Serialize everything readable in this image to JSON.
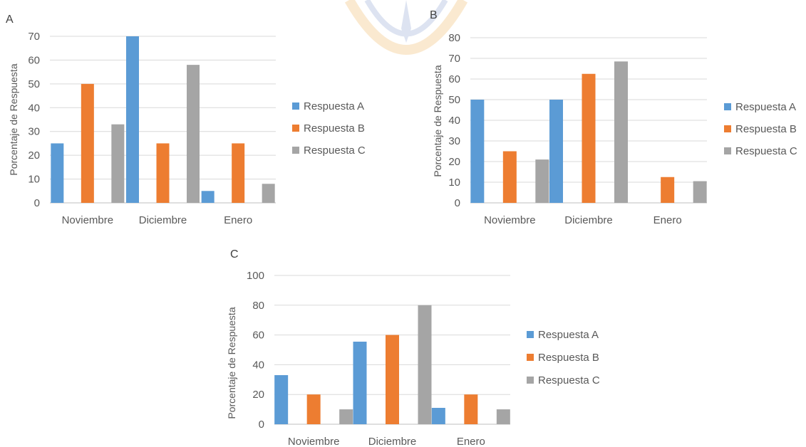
{
  "chart_data": [
    {
      "type": "bar",
      "title": "A",
      "ylabel": "Porcentaje de Respuesta",
      "xlabel": "",
      "ylim": [
        0,
        70
      ],
      "yticks": [
        0,
        10,
        20,
        30,
        40,
        50,
        60,
        70
      ],
      "categories": [
        "Noviembre",
        "Diciembre",
        "Enero"
      ],
      "series": [
        {
          "name": "Respuesta A",
          "color": "#5b9bd5",
          "values": [
            25,
            70,
            5
          ]
        },
        {
          "name": "Respuesta B",
          "color": "#ed7d31",
          "values": [
            50,
            25,
            25
          ]
        },
        {
          "name": "Respuesta C",
          "color": "#a5a5a5",
          "values": [
            33,
            58,
            8
          ]
        }
      ],
      "grid": true,
      "legend": "right"
    },
    {
      "type": "bar",
      "title": "B",
      "ylabel": "Porcentaje de Respuesta",
      "xlabel": "",
      "ylim": [
        0,
        80
      ],
      "yticks": [
        0,
        10,
        20,
        30,
        40,
        50,
        60,
        70,
        80
      ],
      "categories": [
        "Noviembre",
        "Diciembre",
        "Enero"
      ],
      "series": [
        {
          "name": "Respuesta A",
          "color": "#5b9bd5",
          "values": [
            50,
            50,
            0
          ]
        },
        {
          "name": "Respuesta B",
          "color": "#ed7d31",
          "values": [
            25,
            62.5,
            12.5
          ]
        },
        {
          "name": "Respuesta C",
          "color": "#a5a5a5",
          "values": [
            21,
            68.5,
            10.5
          ]
        }
      ],
      "grid": true,
      "legend": "right"
    },
    {
      "type": "bar",
      "title": "C",
      "ylabel": "Porcentaje de Respuesta",
      "xlabel": "",
      "ylim": [
        0,
        100
      ],
      "yticks": [
        0,
        20,
        40,
        60,
        80,
        100
      ],
      "categories": [
        "Noviembre",
        "Diciembre",
        "Enero"
      ],
      "series": [
        {
          "name": "Respuesta A",
          "color": "#5b9bd5",
          "values": [
            33,
            55.5,
            11
          ]
        },
        {
          "name": "Respuesta B",
          "color": "#ed7d31",
          "values": [
            20,
            60,
            20
          ]
        },
        {
          "name": "Respuesta C",
          "color": "#a5a5a5",
          "values": [
            10,
            80,
            10
          ]
        }
      ],
      "grid": true,
      "legend": "right"
    }
  ]
}
